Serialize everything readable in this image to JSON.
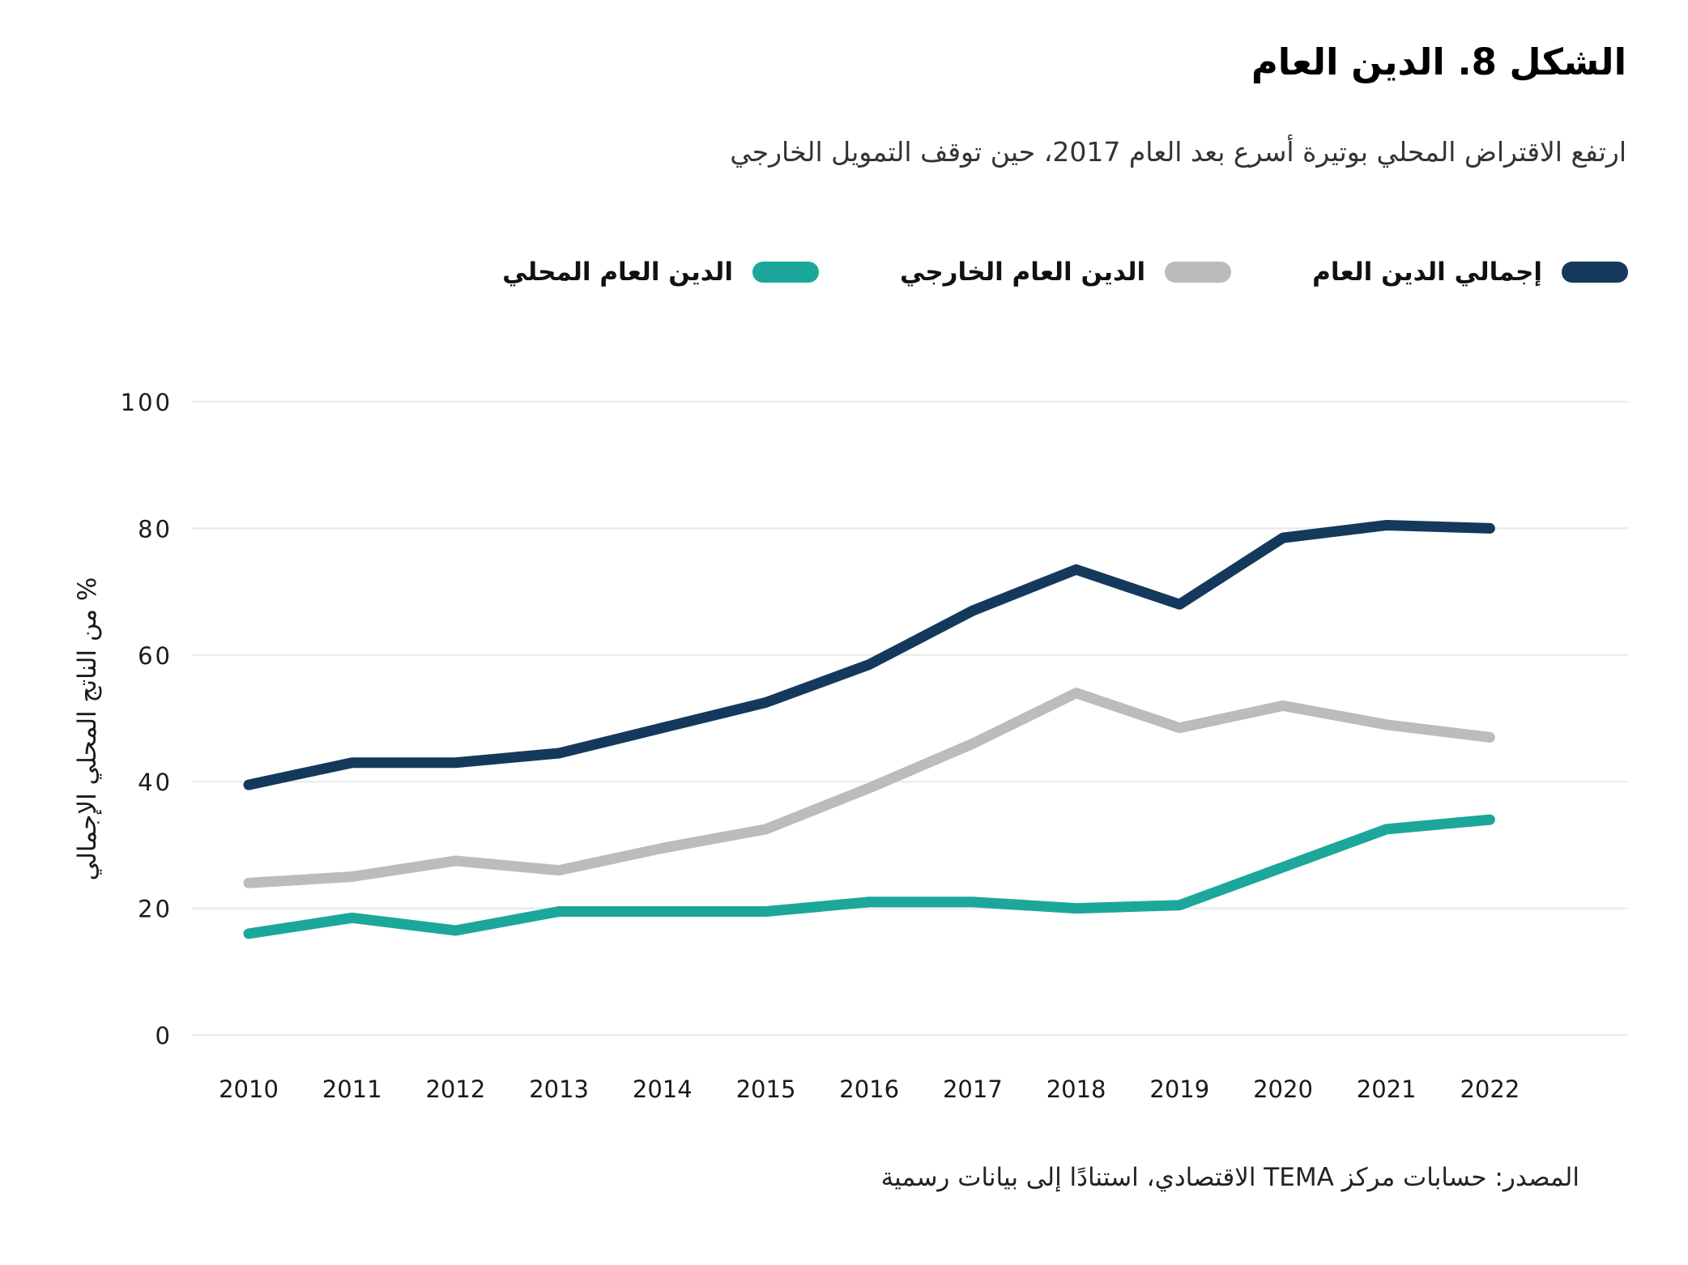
{
  "title": "الشكل 8. الدين العام",
  "subtitle": "ارتفع الاقتراض المحلي بوتيرة أسرع بعد العام 2017، حين توقف التمويل الخارجي",
  "source": "المصدر: حسابات مركز TEMA الاقتصادي، استنادًا إلى بيانات رسمية",
  "colors": {
    "total_debt": "#14395D",
    "external_debt": "#BBBCBE",
    "domestic_debt": "#1BA89A",
    "gridline": "#ECECEC",
    "tick_text": "#1a1a1a"
  },
  "chart_data": {
    "type": "line",
    "title": "الشكل 8. الدين العام",
    "xlabel": "",
    "ylabel": "% من الناتج المحلي الإجمالي",
    "categories": [
      2010,
      2011,
      2012,
      2013,
      2014,
      2015,
      2016,
      2017,
      2018,
      2019,
      2020,
      2021,
      2022
    ],
    "series": [
      {
        "name": "إجمالي الدين العام",
        "color": "#14395D",
        "values": [
          39.5,
          43,
          43,
          44.5,
          48.5,
          52.5,
          58.5,
          67,
          73.5,
          68,
          78.5,
          80.5,
          80
        ]
      },
      {
        "name": "الدين العام الخارجي",
        "color": "#BBBCBE",
        "values": [
          24,
          25,
          27.5,
          26,
          29.5,
          32.5,
          39,
          46,
          54,
          48.5,
          52,
          49,
          47
        ]
      },
      {
        "name": "الدين العام المحلي",
        "color": "#1BA89A",
        "values": [
          16,
          18.5,
          16.5,
          19.5,
          19.5,
          19.5,
          21,
          21,
          20,
          20.5,
          26.5,
          32.5,
          34
        ]
      }
    ],
    "ylim": [
      0,
      100
    ],
    "yticks": [
      0,
      20,
      40,
      60,
      80,
      100
    ],
    "grid": "horizontal",
    "legend_position": "top"
  }
}
